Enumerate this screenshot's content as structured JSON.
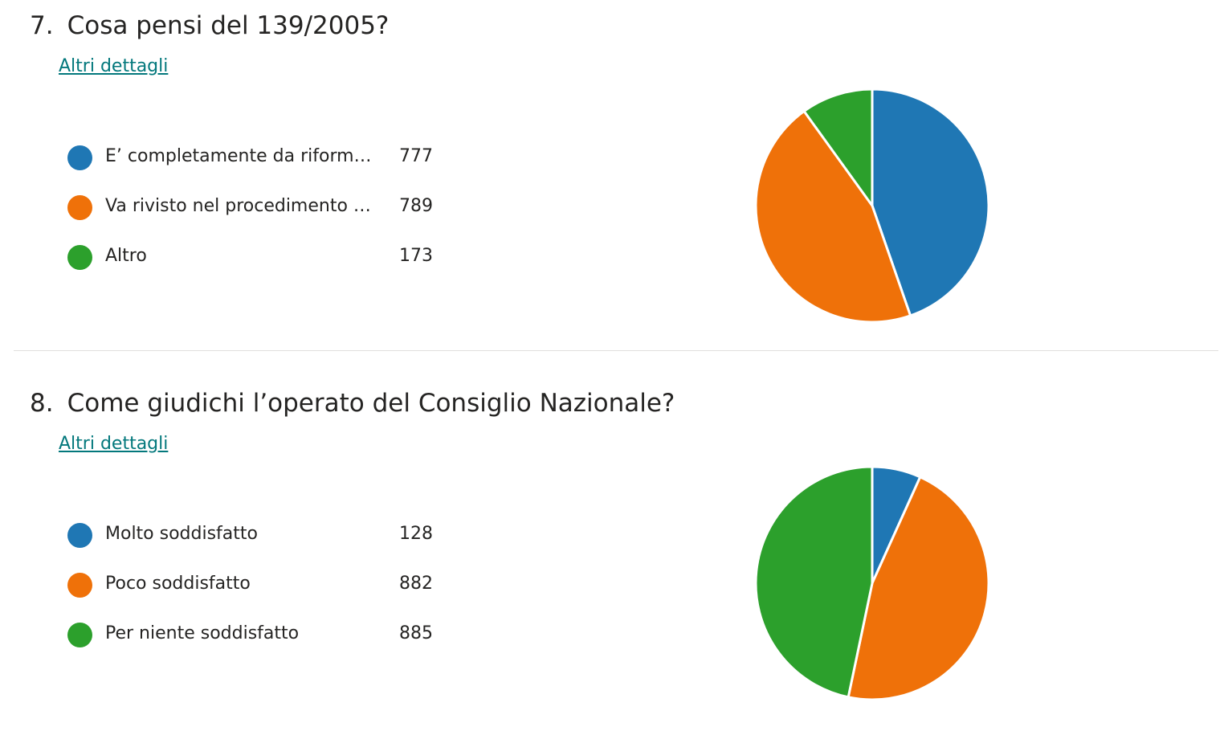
{
  "colors": {
    "blue": "#1f77b4",
    "orange": "#ef7109",
    "green": "#2ca02c",
    "link": "#03787c"
  },
  "questions": [
    {
      "number": "7.",
      "title": "Cosa pensi del 139/2005?",
      "details_link": "Altri dettagli"
    },
    {
      "number": "8.",
      "title": "Come giudichi l’operato del Consiglio Nazionale?",
      "details_link": "Altri dettagli"
    }
  ],
  "chart_data": [
    {
      "type": "pie",
      "title": "Cosa pensi del 139/2005?",
      "legend_position": "left",
      "slices": [
        {
          "label": "E’ completamente da riformare",
          "value": 777,
          "color": "#1f77b4"
        },
        {
          "label": "Va rivisto nel procedimento el…",
          "value": 789,
          "color": "#ef7109"
        },
        {
          "label": "Altro",
          "value": 173,
          "color": "#2ca02c"
        }
      ]
    },
    {
      "type": "pie",
      "title": "Come giudichi l’operato del Consiglio Nazionale?",
      "legend_position": "left",
      "slices": [
        {
          "label": "Molto soddisfatto",
          "value": 128,
          "color": "#1f77b4"
        },
        {
          "label": "Poco soddisfatto",
          "value": 882,
          "color": "#ef7109"
        },
        {
          "label": "Per niente soddisfatto",
          "value": 885,
          "color": "#2ca02c"
        }
      ]
    }
  ]
}
